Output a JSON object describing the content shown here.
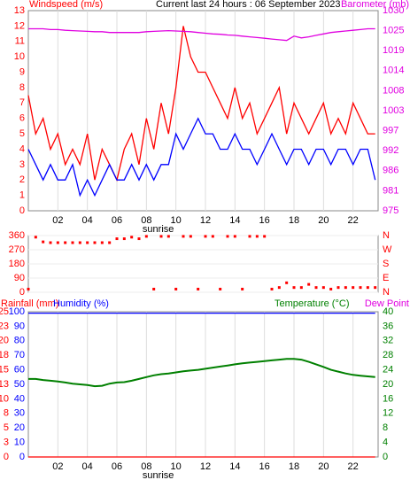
{
  "chart_data": [
    {
      "type": "line",
      "title": "Current last 24 hours : 06 September 2023",
      "ylabel": "Windspeed (m/s)",
      "annotation": "sunrise",
      "annotation_x": 8.8,
      "x": [
        0,
        0.5,
        1,
        1.5,
        2,
        2.5,
        3,
        3.5,
        4,
        4.5,
        5,
        5.5,
        6,
        6.5,
        7,
        7.5,
        8,
        8.5,
        9,
        9.5,
        10,
        10.5,
        11,
        11.5,
        12,
        12.5,
        13,
        13.5,
        14,
        14.5,
        15,
        15.5,
        16,
        16.5,
        17,
        17.5,
        18,
        18.5,
        19,
        19.5,
        20,
        20.5,
        21,
        21.5,
        22,
        22.5,
        23,
        23.5
      ],
      "xlim": [
        0,
        23.7
      ],
      "xticks": [
        {
          "value": 2,
          "label": "02"
        },
        {
          "value": 4,
          "label": "04"
        },
        {
          "value": 6,
          "label": "06"
        },
        {
          "value": 8,
          "label": "08"
        },
        {
          "value": 10,
          "label": "10"
        },
        {
          "value": 12,
          "label": "12"
        },
        {
          "value": 14,
          "label": "14"
        },
        {
          "value": 16,
          "label": "16"
        },
        {
          "value": 18,
          "label": "18"
        },
        {
          "value": 20,
          "label": "20"
        },
        {
          "value": 22,
          "label": "22"
        }
      ],
      "ylim": [
        0,
        13
      ],
      "yticks": [
        0,
        1,
        2,
        3,
        4,
        5,
        6,
        7,
        8,
        9,
        10,
        11,
        12,
        13
      ],
      "ycolor": "#ff0000",
      "y2lim": [
        975,
        1030
      ],
      "y2color": "#e000e0",
      "y2ticks": [
        975,
        {
          "value": 980.5,
          "label": "981"
        },
        986,
        {
          "value": 991.5,
          "label": "992"
        },
        997,
        {
          "value": 1002.5,
          "label": "1003"
        },
        1008,
        {
          "value": 1013.5,
          "label": "1014"
        },
        1019,
        {
          "value": 1024.5,
          "label": "1025"
        },
        1030
      ],
      "grid": true,
      "series": [
        {
          "color": "#ff0000",
          "values": [
            7.5,
            5,
            6,
            4,
            5,
            3,
            4,
            3,
            5,
            2,
            4,
            3,
            2,
            4,
            5,
            3,
            6,
            4,
            7,
            5,
            8,
            12,
            10,
            9,
            9,
            8,
            7,
            6,
            8,
            6,
            7,
            5,
            6,
            7,
            8,
            5,
            7,
            6,
            5,
            6,
            7,
            5,
            6,
            5,
            7,
            6,
            5,
            5
          ]
        },
        {
          "color": "#0000ff",
          "values": [
            4,
            3,
            2,
            3,
            2,
            2,
            3,
            1,
            2,
            1,
            2,
            3,
            2,
            2,
            3,
            2,
            3,
            2,
            3,
            3,
            5,
            4,
            5,
            6,
            5,
            5,
            4,
            4,
            5,
            4,
            4,
            3,
            4,
            5,
            4,
            3,
            4,
            4,
            3,
            4,
            4,
            3,
            4,
            4,
            3,
            4,
            4,
            2
          ]
        },
        {
          "name": "Barometer (mb)",
          "color": "#e000e0",
          "axis": "y2",
          "values": [
            1025,
            1025,
            1025,
            1024.8,
            1024.8,
            1024.6,
            1024.5,
            1024.4,
            1024.3,
            1024.2,
            1024.2,
            1024,
            1024,
            1024,
            1024,
            1024,
            1024.2,
            1024.3,
            1024.4,
            1024.5,
            1024.4,
            1024.3,
            1024.2,
            1024,
            1023.8,
            1023.6,
            1023.5,
            1023.3,
            1023.2,
            1023,
            1022.8,
            1022.6,
            1022.4,
            1022.2,
            1022,
            1021.8,
            1023,
            1022.5,
            1022.8,
            1023.2,
            1023.6,
            1024,
            1024.2,
            1024.4,
            1024.6,
            1024.8,
            1025,
            1025
          ]
        }
      ]
    },
    {
      "type": "scatter",
      "x": [
        0,
        0.5,
        1,
        1.5,
        2,
        2.5,
        3,
        3.5,
        4,
        4.5,
        5,
        5.5,
        6,
        6.5,
        7,
        7.5,
        8,
        8.5,
        9,
        9.5,
        10,
        10.5,
        11,
        11.5,
        12,
        12.5,
        13,
        13.5,
        14,
        14.5,
        15,
        15.5,
        16,
        16.5,
        17,
        17.5,
        18,
        18.5,
        19,
        19.5,
        20,
        20.5,
        21,
        21.5,
        22,
        22.5,
        23,
        23.5
      ],
      "xlim": [
        0,
        23.7
      ],
      "ylim": [
        0,
        360
      ],
      "yticks": [
        0,
        90,
        180,
        270,
        360
      ],
      "ycolor": "#ff0000",
      "y2color": "#ff0000",
      "y2lim": [
        0,
        360
      ],
      "y2ticks": [
        {
          "value": 0,
          "label": "N"
        },
        {
          "value": 90,
          "label": "E"
        },
        {
          "value": 180,
          "label": "S"
        },
        {
          "value": 270,
          "label": "W"
        },
        {
          "value": 360,
          "label": "N"
        }
      ],
      "color": "#ff0000",
      "values": [
        20,
        350,
        320,
        315,
        315,
        315,
        315,
        315,
        315,
        315,
        315,
        315,
        340,
        340,
        350,
        340,
        355,
        20,
        355,
        355,
        20,
        355,
        355,
        20,
        355,
        355,
        20,
        355,
        355,
        20,
        355,
        355,
        355,
        20,
        30,
        60,
        30,
        30,
        50,
        30,
        30,
        20,
        30,
        30,
        30,
        30,
        30,
        30
      ]
    },
    {
      "type": "line",
      "annotation": "sunrise",
      "annotation_x": 8.8,
      "dew_point_label": "Dew Point",
      "x": [
        0,
        0.5,
        1,
        1.5,
        2,
        2.5,
        3,
        3.5,
        4,
        4.5,
        5,
        5.5,
        6,
        6.5,
        7,
        7.5,
        8,
        8.5,
        9,
        9.5,
        10,
        10.5,
        11,
        11.5,
        12,
        12.5,
        13,
        13.5,
        14,
        14.5,
        15,
        15.5,
        16,
        16.5,
        17,
        17.5,
        18,
        18.5,
        19,
        19.5,
        20,
        20.5,
        21,
        21.5,
        22,
        22.5,
        23,
        23.5
      ],
      "xlim": [
        0,
        23.7
      ],
      "xticks": [
        {
          "value": 2,
          "label": "02"
        },
        {
          "value": 4,
          "label": "04"
        },
        {
          "value": 6,
          "label": "06"
        },
        {
          "value": 8,
          "label": "08"
        },
        {
          "value": 10,
          "label": "10"
        },
        {
          "value": 12,
          "label": "12"
        },
        {
          "value": 14,
          "label": "14"
        },
        {
          "value": 16,
          "label": "16"
        },
        {
          "value": 18,
          "label": "18"
        },
        {
          "value": 20,
          "label": "20"
        },
        {
          "value": 22,
          "label": "22"
        }
      ],
      "ylim": [
        0,
        100
      ],
      "yticks": [
        0,
        10,
        20,
        30,
        40,
        50,
        60,
        70,
        80,
        90,
        100
      ],
      "ycolor": "#0000ff",
      "y2lim": [
        0,
        40
      ],
      "y2ticks": [
        0,
        4,
        8,
        12,
        16,
        20,
        24,
        28,
        32,
        36,
        40
      ],
      "y2color": "#008000",
      "y3lim": [
        0,
        25
      ],
      "y3color": "#ff0000",
      "y3ticks": [
        0,
        {
          "value": 2.5,
          "label": "3"
        },
        5,
        {
          "value": 7.5,
          "label": "8"
        },
        10,
        {
          "value": 12.5,
          "label": "13"
        },
        15,
        {
          "value": 17.5,
          "label": "18"
        },
        20,
        {
          "value": 22.5,
          "label": "23"
        },
        25
      ],
      "grid": true,
      "series": [
        {
          "name": "Rainfall (mm)",
          "color": "#ff0000",
          "axis": "y3",
          "values": [
            0,
            0,
            0,
            0,
            0,
            0,
            0,
            0,
            0,
            0,
            0,
            0,
            0,
            0,
            0,
            0,
            0,
            0,
            0,
            0,
            0,
            0,
            0,
            0,
            0,
            0,
            0,
            0,
            0,
            0,
            0,
            0,
            0,
            0,
            0,
            0,
            0,
            0,
            0,
            0,
            0,
            0,
            0,
            0,
            0,
            0,
            0,
            0
          ]
        },
        {
          "name": "Humidity (%)",
          "color": "#0000ff",
          "values": [
            99,
            99,
            99,
            99,
            99,
            99,
            99,
            99,
            99,
            99,
            99,
            99,
            99,
            99,
            99,
            99,
            99,
            99,
            99,
            99,
            99,
            99,
            99,
            99,
            99,
            99,
            99,
            99,
            99,
            99,
            99,
            99,
            99,
            99,
            99,
            99,
            99,
            99,
            99,
            99,
            99,
            99,
            99,
            99,
            99,
            99,
            99,
            99
          ]
        },
        {
          "name": "Temperature (°C)",
          "color": "#008000",
          "axis": "y2",
          "values": [
            21.5,
            21.5,
            21.2,
            21,
            20.8,
            20.5,
            20.2,
            20,
            19.8,
            19.5,
            19.6,
            20.2,
            20.5,
            20.6,
            21,
            21.5,
            22,
            22.5,
            22.8,
            23,
            23.3,
            23.6,
            23.8,
            24,
            24.3,
            24.6,
            24.9,
            25.2,
            25.5,
            25.8,
            26,
            26.2,
            26.4,
            26.6,
            26.8,
            27,
            27,
            26.8,
            26.2,
            25.5,
            24.8,
            24,
            23.5,
            23,
            22.6,
            22.4,
            22.2,
            22
          ]
        }
      ]
    }
  ]
}
